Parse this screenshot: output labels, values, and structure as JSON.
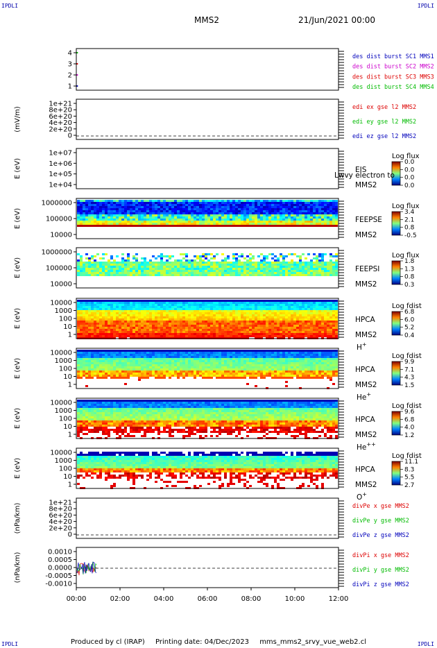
{
  "header": {
    "corner_tl": "IPDLI",
    "corner_tr": "IPDLI",
    "corner_bl": "IPDLI",
    "corner_br": "IPDLI",
    "spacecraft": "MMS2",
    "datetime": "21/Jun/2021 00:00"
  },
  "footer": {
    "producer": "Produced by cl (IRAP)",
    "printing": "Printing date: 04/Dec/2023",
    "script": "mms_mms2_srvy_vue_web2.cl"
  },
  "colors": {
    "red": "#dd0000",
    "green": "#00bb00",
    "blue": "#0000bb",
    "magenta": "#cc00cc"
  },
  "chart_data": [
    {
      "id": "burst",
      "type": "scatter",
      "y_ticks": [
        "4",
        "3",
        "2",
        "1"
      ],
      "legend": [
        {
          "label": "des dist burst SC1 MMS1",
          "color": "#0000bb"
        },
        {
          "label": "des dist burst SC2 MMS2",
          "color": "#cc00cc"
        },
        {
          "label": "des dist burst SC3 MMS3",
          "color": "#dd0000"
        },
        {
          "label": "des dist burst SC4 MMS4",
          "color": "#00bb00"
        }
      ],
      "points": [
        {
          "x": 0.2,
          "y": 4,
          "color": "#00bb00"
        },
        {
          "x": 0.2,
          "y": 3,
          "color": "#dd0000"
        },
        {
          "x": 0.2,
          "y": 2,
          "color": "#cc00cc"
        },
        {
          "x": 0.2,
          "y": 1,
          "color": "#0000bb"
        }
      ]
    },
    {
      "id": "edi",
      "type": "line",
      "ylabel": "(mV/m)",
      "y_ticks": [
        "1e+21",
        "8e+20",
        "6e+20",
        "4e+20",
        "2e+20",
        "0"
      ],
      "legend": [
        {
          "label": "edi ex gse l2 MMS2",
          "color": "#dd0000"
        },
        {
          "label": "edi ey gse l2 MMS2",
          "color": "#00bb00"
        },
        {
          "label": "edi ez gse l2 MMS2",
          "color": "#0000bb"
        }
      ]
    },
    {
      "id": "eis",
      "type": "heatmap",
      "ylabel": "E (eV)",
      "y_ticks": [
        "1e+07",
        "1e+06",
        "1e+05",
        "1e+04"
      ],
      "label1": "EIS",
      "label2": "MMS2",
      "overlay": "Lwvy electron to",
      "cbar_title": "Log flux",
      "cbar_ticks": [
        "0.0",
        "0.0",
        "0.0",
        "0.0"
      ]
    },
    {
      "id": "feepse",
      "type": "heatmap",
      "ylabel": "E (eV)",
      "y_ticks": [
        "1000000",
        "100000",
        "10000"
      ],
      "label1": "FEEPSE",
      "label2": "MMS2",
      "cbar_title": "Log flux",
      "cbar_ticks": [
        "3.4",
        "2.1",
        "0.8",
        "-0.5"
      ]
    },
    {
      "id": "feepsi",
      "type": "heatmap",
      "ylabel": "E (eV)",
      "y_ticks": [
        "1000000",
        "100000",
        "10000"
      ],
      "label1": "FEEPSI",
      "label2": "MMS2",
      "cbar_title": "Log flux",
      "cbar_ticks": [
        "1.8",
        "1.3",
        "0.8",
        "0.3"
      ]
    },
    {
      "id": "hpca_h",
      "type": "heatmap",
      "ylabel": "E (eV)",
      "y_ticks": [
        "10000",
        "1000",
        "100",
        "10",
        "1"
      ],
      "label1": "HPCA",
      "label2": "MMS2",
      "species": "H",
      "charge": "+",
      "cbar_title": "Log fdist",
      "cbar_ticks": [
        "6.8",
        "6.0",
        "5.2",
        "0.4"
      ]
    },
    {
      "id": "hpca_he",
      "type": "heatmap",
      "ylabel": "E (eV)",
      "y_ticks": [
        "10000",
        "1000",
        "100",
        "10",
        "1"
      ],
      "label1": "HPCA",
      "label2": "MMS2",
      "species": "He",
      "charge": "+",
      "cbar_title": "Log fdist",
      "cbar_ticks": [
        "9.9",
        "7.1",
        "4.3",
        "1.5"
      ]
    },
    {
      "id": "hpca_hepp",
      "type": "heatmap",
      "ylabel": "E (eV)",
      "y_ticks": [
        "10000",
        "1000",
        "100",
        "10",
        "1"
      ],
      "label1": "HPCA",
      "label2": "MMS2",
      "species": "He",
      "charge": "++",
      "cbar_title": "Log fdist",
      "cbar_ticks": [
        "9.6",
        "6.8",
        "4.0",
        "1.2"
      ]
    },
    {
      "id": "hpca_o",
      "type": "heatmap",
      "ylabel": "E (eV)",
      "y_ticks": [
        "10000",
        "1000",
        "100",
        "10",
        "1"
      ],
      "label1": "HPCA",
      "label2": "MMS2",
      "species": "O",
      "charge": "+",
      "cbar_title": "Log fdist",
      "cbar_ticks": [
        "11.1",
        "8.3",
        "5.5",
        "2.7"
      ]
    },
    {
      "id": "divpe",
      "type": "line",
      "ylabel": "(nPa/km)",
      "y_ticks": [
        "1e+21",
        "8e+20",
        "6e+20",
        "4e+20",
        "2e+20",
        "0"
      ],
      "legend": [
        {
          "label": "divPe x gse MMS2",
          "color": "#dd0000"
        },
        {
          "label": "divPe y gse MMS2",
          "color": "#00bb00"
        },
        {
          "label": "divPe z gse MMS2",
          "color": "#0000bb"
        }
      ]
    },
    {
      "id": "divpi",
      "type": "line",
      "ylabel": "(nPa/km)",
      "y_ticks": [
        "0.0010",
        "0.0005",
        "0.0000",
        "-0.0005",
        "-0.0010"
      ],
      "ylim": [
        -0.0012,
        0.0012
      ],
      "data_end_hour": 0.95,
      "legend": [
        {
          "label": "divPi x gse MMS2",
          "color": "#dd0000"
        },
        {
          "label": "divPi y gse MMS2",
          "color": "#00bb00"
        },
        {
          "label": "divPi z gse MMS2",
          "color": "#0000bb"
        }
      ]
    }
  ],
  "xaxis": {
    "ticks": [
      "00:00",
      "02:00",
      "04:00",
      "06:00",
      "08:00",
      "10:00",
      "12:00"
    ],
    "xlim_hours": [
      0,
      12
    ]
  }
}
